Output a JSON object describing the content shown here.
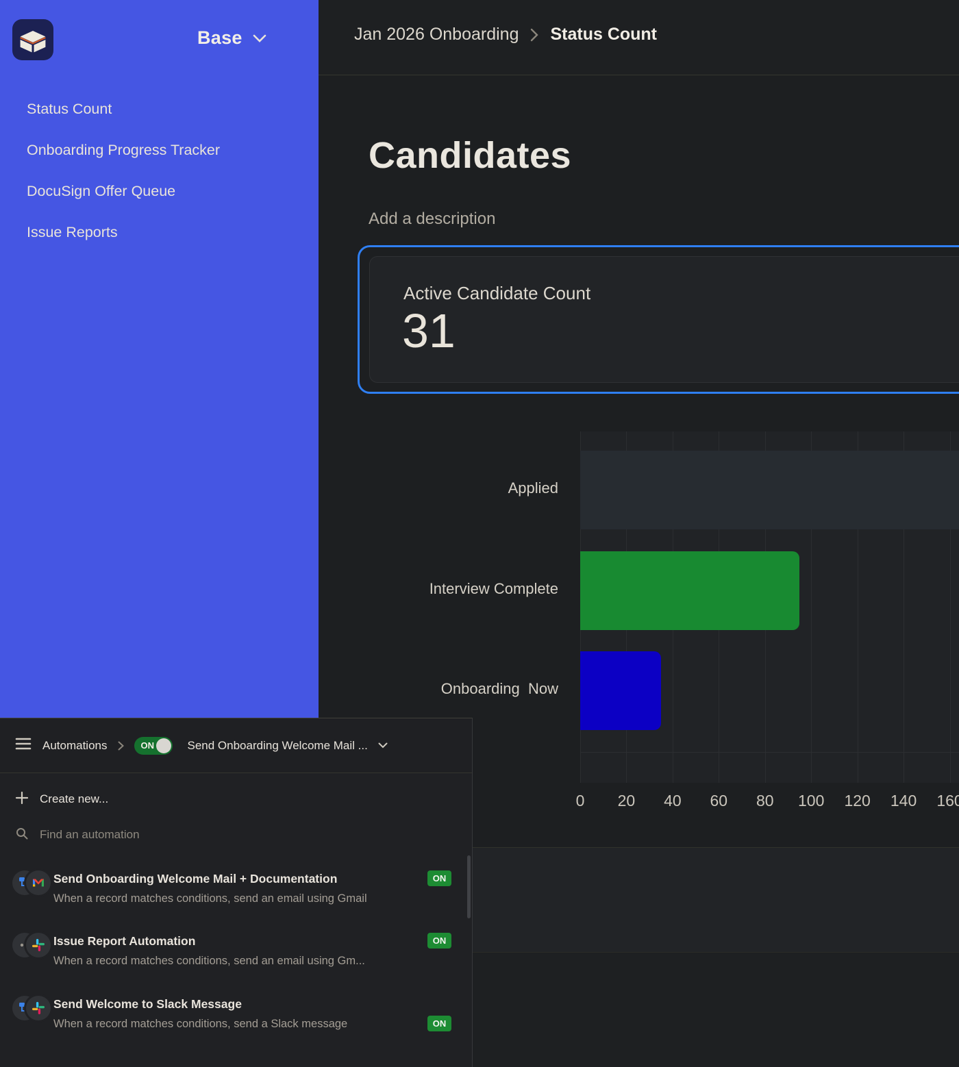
{
  "colors": {
    "sidebar_blue": "#4556e3",
    "selected_card_border": "#2f7ff2",
    "bar_gray": "#272c31",
    "bar_green": "#188a31",
    "bar_blue": "#0c00c4",
    "badge_green": "#1d8c33",
    "toggle_green": "#15712e"
  },
  "sidebar": {
    "base_label": "Base",
    "items": [
      {
        "label": "Status Count"
      },
      {
        "label": "Onboarding Progress Tracker"
      },
      {
        "label": "DocuSign Offer Queue"
      },
      {
        "label": "Issue Reports"
      }
    ]
  },
  "header": {
    "breadcrumb_parent": "Jan 2026 Onboarding",
    "breadcrumb_current": "Status Count"
  },
  "main": {
    "title": "Candidates",
    "description_placeholder": "Add a description",
    "count_card": {
      "label": "Active Candidate Count",
      "value": "31"
    }
  },
  "chart_data": {
    "type": "bar",
    "orientation": "horizontal",
    "categories": [
      "Applied",
      "Interview Complete",
      "Onboarding  Now"
    ],
    "values": [
      170,
      95,
      35
    ],
    "bar_colors": [
      "#272c31",
      "#188a31",
      "#0c00c4"
    ],
    "xticks": [
      0,
      20,
      40,
      60,
      80,
      100,
      120,
      140,
      160
    ],
    "xlim": [
      0,
      164
    ],
    "grid": true,
    "legend": false,
    "note": "Applied bar is clipped at the right edge of the viewport (extends beyond the 160 tick); its value is an estimate of at least ~165."
  },
  "automations": {
    "breadcrumb_label": "Automations",
    "toggle_label": "ON",
    "selected_title": "Send Onboarding Welcome Mail ...",
    "create_new_label": "Create new...",
    "search_placeholder": "Find an automation",
    "items": [
      {
        "title": "Send Onboarding Welcome Mail + Documentation",
        "description": "When a record matches conditions, send an email using Gmail",
        "status": "ON",
        "icons": [
          "trigger",
          "gmail"
        ]
      },
      {
        "title": "Issue Report Automation",
        "description": "When a record matches conditions, send an email using Gm...",
        "status": "ON",
        "icons": [
          "dots",
          "slack"
        ]
      },
      {
        "title": "Send Welcome to Slack Message",
        "description": "When a record matches conditions, send a Slack message",
        "status": "ON",
        "icons": [
          "trigger",
          "slack"
        ]
      }
    ]
  }
}
